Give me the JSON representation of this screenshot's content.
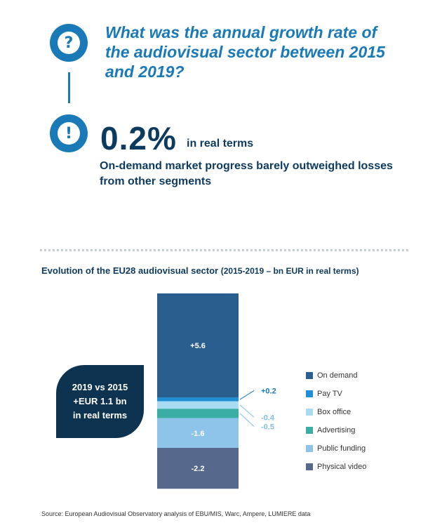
{
  "header": {
    "question": "What was the annual growth rate of the audiovisual sector between 2015 and 2019?",
    "question_icon": "question-mark-icon",
    "answer_icon": "exclamation-icon",
    "answer_value": "0.2%",
    "answer_unit": "in real terms",
    "answer_detail": "On-demand market progress barely outweighed losses from other segments"
  },
  "chart_data": {
    "type": "bar",
    "stacked": true,
    "title": "Evolution of the EU28 audiovisual sector",
    "subtitle": "(2015-2019 – bn EUR in real terms)",
    "series": [
      {
        "name": "On demand",
        "value": 5.6,
        "label": "+5.6",
        "color": "#2a5e8f"
      },
      {
        "name": "Pay TV",
        "value": 0.2,
        "label": "+0.2",
        "color": "#1e8ed6"
      },
      {
        "name": "Box office",
        "value": -0.4,
        "label": "-0.4",
        "color": "#a9dbf2"
      },
      {
        "name": "Advertising",
        "value": -0.5,
        "label": "-0.5",
        "color": "#3aada4"
      },
      {
        "name": "Public funding",
        "value": -1.6,
        "label": "-1.6",
        "color": "#8ec3ea"
      },
      {
        "name": "Physical video",
        "value": -2.2,
        "label": "-2.2",
        "color": "#56698c"
      }
    ],
    "label_colors": {
      "pay_tv": "#1a7ab8",
      "box_office": "#7fbfe6"
    }
  },
  "callout": {
    "line1": "2019 vs 2015",
    "line2": "+EUR 1.1 bn",
    "line3": "in real terms"
  },
  "footer": {
    "source": "Source: European Audiovisual Observatory analysis of EBU/MIS, Warc, Ampere, LUMIERE data"
  }
}
